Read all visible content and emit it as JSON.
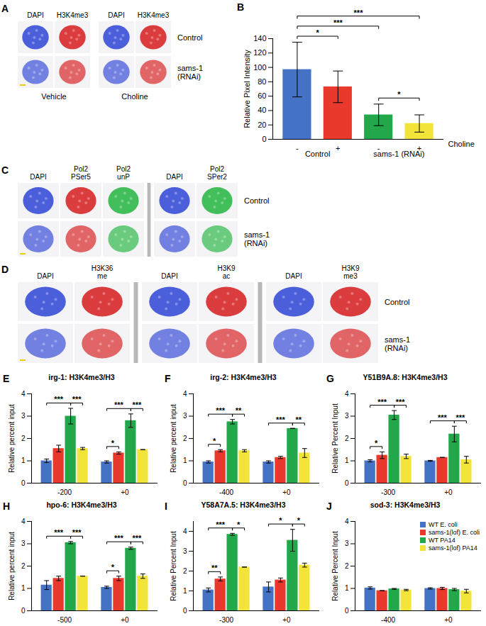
{
  "image_panels": [
    {
      "panel_label": "A",
      "column_groups": [
        {
          "label": "Vehicle",
          "columns": [
            {
              "label": "DAPI",
              "color": "#3a4fd8"
            },
            {
              "label": "H3K4me3",
              "color": "#d8282a"
            }
          ]
        },
        {
          "label": "Choline",
          "columns": [
            {
              "label": "DAPI",
              "color": "#3a4fd8"
            },
            {
              "label": "H3K4me3",
              "color": "#d8282a"
            }
          ]
        }
      ],
      "rows": [
        "Control",
        "sams-1 (RNAi)"
      ]
    },
    {
      "panel_label": "C",
      "column_groups": [
        {
          "columns": [
            {
              "label": "DAPI",
              "color": "#3a4fd8"
            },
            {
              "label": "Pol2 PSer5",
              "color": "#d8282a"
            },
            {
              "label": "Pol2 unP",
              "color": "#2fb84a"
            }
          ]
        },
        {
          "columns": [
            {
              "label": "DAPI",
              "color": "#3a4fd8"
            },
            {
              "label": "Pol2 SPer2",
              "color": "#2fb84a"
            }
          ]
        }
      ],
      "rows": [
        "Control",
        "sams-1 (RNAi)"
      ]
    },
    {
      "panel_label": "D",
      "column_groups": [
        {
          "columns": [
            {
              "label": "DAPI",
              "color": "#3a4fd8"
            },
            {
              "label": "H3K36 me",
              "color": "#d8282a"
            }
          ]
        },
        {
          "columns": [
            {
              "label": "DAPI",
              "color": "#3a4fd8"
            },
            {
              "label": "H3K9 ac",
              "color": "#d8282a"
            }
          ]
        },
        {
          "columns": [
            {
              "label": "DAPI",
              "color": "#3a4fd8"
            },
            {
              "label": "H3K9 me3",
              "color": "#d8282a"
            }
          ]
        }
      ],
      "rows": [
        "Control",
        "sams-1 (RNAi)"
      ]
    }
  ],
  "chart_data": [
    {
      "panel_label": "B",
      "type": "bar",
      "y_label": "Relative Pixel Intensity",
      "x_label": "Choline",
      "categories": [
        "-",
        "+",
        "-",
        "+"
      ],
      "groups": [
        {
          "label": "Control",
          "from": 0,
          "to": 1
        },
        {
          "label": "sams-1 (RNAi)",
          "from": 2,
          "to": 3
        }
      ],
      "values": [
        97,
        73,
        34,
        22
      ],
      "errors": [
        38,
        22,
        15,
        12
      ],
      "colors": [
        "#4472c4",
        "#e8392c",
        "#22a84a",
        "#f3e43a"
      ],
      "ylim": [
        0,
        140
      ],
      "yticks": [
        0,
        20,
        40,
        60,
        80,
        100,
        120,
        140
      ],
      "annotations": [
        {
          "from": 0,
          "to": 1,
          "label": "*"
        },
        {
          "from": 0,
          "to": 2,
          "label": "***"
        },
        {
          "from": 0,
          "to": 3,
          "label": "***"
        },
        {
          "from": 2,
          "to": 3,
          "label": "*"
        }
      ]
    },
    {
      "panel_label": "E",
      "type": "bar",
      "title": "irg-1: H3K4me3/H3",
      "y_label": "Relative percent input",
      "categories": [
        "-200",
        "+0"
      ],
      "series": [
        {
          "color": "#4472c4",
          "values": [
            1.0,
            0.95
          ],
          "errors": [
            0.08,
            0.05
          ]
        },
        {
          "color": "#e8392c",
          "values": [
            1.55,
            1.35
          ],
          "errors": [
            0.15,
            0.05
          ]
        },
        {
          "color": "#22a84a",
          "values": [
            3.0,
            2.8
          ],
          "errors": [
            0.35,
            0.3
          ]
        },
        {
          "color": "#f3e43a",
          "values": [
            1.55,
            1.5
          ],
          "errors": [
            0.05,
            0
          ]
        }
      ],
      "ylim": [
        0,
        4
      ],
      "yticks": [
        0,
        1,
        2,
        3,
        4
      ],
      "annotations": [
        {
          "group": 0,
          "from": 0,
          "to": 2,
          "label": "***"
        },
        {
          "group": 0,
          "from": 2,
          "to": 3,
          "label": "***"
        },
        {
          "group": 1,
          "from": 0,
          "to": 1,
          "label": "*"
        },
        {
          "group": 1,
          "from": 0,
          "to": 2,
          "label": "***"
        },
        {
          "group": 1,
          "from": 2,
          "to": 3,
          "label": "***"
        }
      ]
    },
    {
      "panel_label": "F",
      "type": "bar",
      "title": "irg-2: H3K4me3/H3",
      "y_label": "Relative percent input",
      "categories": [
        "-400",
        "+0"
      ],
      "series": [
        {
          "color": "#4472c4",
          "values": [
            0.95,
            0.95
          ],
          "errors": [
            0.05,
            0.05
          ]
        },
        {
          "color": "#e8392c",
          "values": [
            1.45,
            1.15
          ],
          "errors": [
            0.05,
            0.05
          ]
        },
        {
          "color": "#22a84a",
          "values": [
            2.75,
            2.45
          ],
          "errors": [
            0.1,
            0
          ]
        },
        {
          "color": "#f3e43a",
          "values": [
            1.45,
            1.35
          ],
          "errors": [
            0.05,
            0.2
          ]
        }
      ],
      "ylim": [
        0,
        4
      ],
      "yticks": [
        0,
        1,
        2,
        3,
        4
      ],
      "annotations": [
        {
          "group": 0,
          "from": 0,
          "to": 1,
          "label": "*"
        },
        {
          "group": 0,
          "from": 0,
          "to": 2,
          "label": "***"
        },
        {
          "group": 0,
          "from": 2,
          "to": 3,
          "label": "**"
        },
        {
          "group": 1,
          "from": 0,
          "to": 2,
          "label": "***"
        },
        {
          "group": 1,
          "from": 2,
          "to": 3,
          "label": "**"
        }
      ]
    },
    {
      "panel_label": "G",
      "type": "bar",
      "title": "Y51B9A.8: H3K4me3/H3",
      "y_label": "Relative Percent Input",
      "categories": [
        "-300",
        "+0"
      ],
      "series": [
        {
          "color": "#4472c4",
          "values": [
            1.0,
            1.0
          ],
          "errors": [
            0.05,
            0.02
          ]
        },
        {
          "color": "#e8392c",
          "values": [
            1.25,
            1.15
          ],
          "errors": [
            0.15,
            0
          ]
        },
        {
          "color": "#22a84a",
          "values": [
            3.05,
            2.2
          ],
          "errors": [
            0.2,
            0.35
          ]
        },
        {
          "color": "#f3e43a",
          "values": [
            1.2,
            1.05
          ],
          "errors": [
            0.1,
            0.15
          ]
        }
      ],
      "ylim": [
        0,
        4
      ],
      "yticks": [
        0,
        1,
        2,
        3,
        4
      ],
      "annotations": [
        {
          "group": 0,
          "from": 0,
          "to": 1,
          "label": "*"
        },
        {
          "group": 0,
          "from": 0,
          "to": 2,
          "label": "***"
        },
        {
          "group": 0,
          "from": 2,
          "to": 3,
          "label": "***"
        },
        {
          "group": 1,
          "from": 0,
          "to": 2,
          "label": "***"
        },
        {
          "group": 1,
          "from": 2,
          "to": 3,
          "label": "***"
        }
      ]
    },
    {
      "panel_label": "H",
      "type": "bar",
      "title": "hpo-6: H3K4me3/H3",
      "y_label": "Relative percent input",
      "categories": [
        "-500",
        "+0"
      ],
      "series": [
        {
          "color": "#4472c4",
          "values": [
            1.15,
            1.05
          ],
          "errors": [
            0.2,
            0.05
          ]
        },
        {
          "color": "#e8392c",
          "values": [
            1.45,
            1.45
          ],
          "errors": [
            0.1,
            0.1
          ]
        },
        {
          "color": "#22a84a",
          "values": [
            3.05,
            2.8
          ],
          "errors": [
            0.05,
            0.05
          ]
        },
        {
          "color": "#f3e43a",
          "values": [
            1.55,
            1.55
          ],
          "errors": [
            0,
            0.1
          ]
        }
      ],
      "ylim": [
        0,
        4
      ],
      "yticks": [
        0,
        1,
        2,
        3,
        4
      ],
      "annotations": [
        {
          "group": 0,
          "from": 0,
          "to": 2,
          "label": "***"
        },
        {
          "group": 0,
          "from": 2,
          "to": 3,
          "label": "***"
        },
        {
          "group": 1,
          "from": 0,
          "to": 1,
          "label": "*"
        },
        {
          "group": 1,
          "from": 0,
          "to": 2,
          "label": "***"
        },
        {
          "group": 1,
          "from": 2,
          "to": 3,
          "label": "***"
        }
      ]
    },
    {
      "panel_label": "I",
      "type": "bar",
      "title": "Y58A7A.5: H3K4me3/H3",
      "y_label": "Relative Percent Input",
      "categories": [
        "-300",
        "+0"
      ],
      "series": [
        {
          "color": "#4472c4",
          "values": [
            1.05,
            1.2
          ],
          "errors": [
            0.1,
            0.25
          ]
        },
        {
          "color": "#e8392c",
          "values": [
            1.6,
            1.55
          ],
          "errors": [
            0.1,
            0.1
          ]
        },
        {
          "color": "#22a84a",
          "values": [
            3.85,
            3.55
          ],
          "errors": [
            0.05,
            0.55
          ]
        },
        {
          "color": "#f3e43a",
          "values": [
            2.2,
            2.3
          ],
          "errors": [
            0,
            0.1
          ]
        }
      ],
      "ylim": [
        0,
        4.5
      ],
      "yticks": [
        0,
        1,
        2,
        3,
        4
      ],
      "annotations": [
        {
          "group": 0,
          "from": 0,
          "to": 1,
          "label": "**"
        },
        {
          "group": 0,
          "from": 0,
          "to": 2,
          "label": "***"
        },
        {
          "group": 0,
          "from": 2,
          "to": 3,
          "label": "*"
        },
        {
          "group": 1,
          "from": 0,
          "to": 2,
          "label": "*"
        },
        {
          "group": 1,
          "from": 2,
          "to": 3,
          "label": "*"
        }
      ]
    },
    {
      "panel_label": "J",
      "type": "bar",
      "title": "sod-3: H3K4me3/H3",
      "y_label": "Relative Percent Input",
      "categories": [
        "-400",
        "+0"
      ],
      "series": [
        {
          "name": "WT E. coli",
          "color": "#4472c4",
          "values": [
            1.02,
            1.0
          ],
          "errors": [
            0.05,
            0.03
          ]
        },
        {
          "name": "sams-1(lof) E. coli",
          "color": "#e8392c",
          "values": [
            0.9,
            1.0
          ],
          "errors": [
            0,
            0.05
          ]
        },
        {
          "name": "WT PA14",
          "color": "#22a84a",
          "values": [
            0.98,
            0.95
          ],
          "errors": [
            0.02,
            0.05
          ]
        },
        {
          "name": "sams-1(lof) PA14",
          "color": "#f3e43a",
          "values": [
            0.93,
            0.88
          ],
          "errors": [
            0.03,
            0.08
          ]
        }
      ],
      "ylim": [
        0,
        4
      ],
      "yticks": [
        0,
        1,
        2,
        3,
        4
      ],
      "legend": "top-right"
    }
  ]
}
